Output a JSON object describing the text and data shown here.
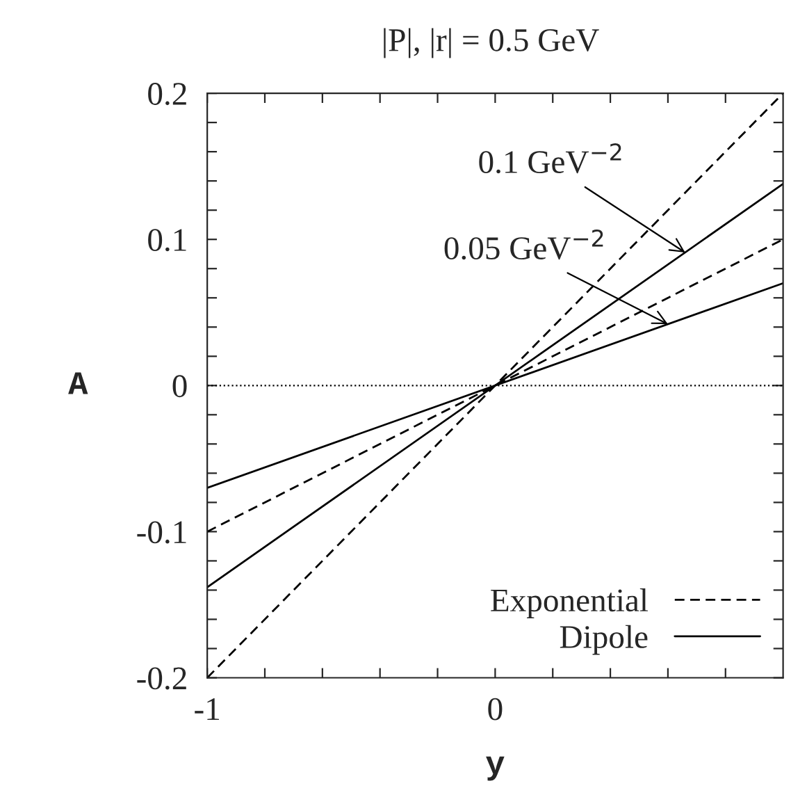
{
  "chart_data": {
    "type": "line",
    "title": "|P|, |r| = 0.5 GeV",
    "xlabel": "y",
    "ylabel": "A",
    "x": [
      -1,
      1
    ],
    "series": [
      {
        "name": "Exponential",
        "color": "#000000",
        "line_style": "dashed",
        "values": [
          -0.2,
          0.2
        ]
      },
      {
        "name": "Dipole",
        "color": "#000000",
        "line_style": "solid",
        "values": [
          -0.138,
          0.138
        ]
      },
      {
        "color": "#000000",
        "line_style": "dashed",
        "values": [
          -0.1,
          0.1
        ]
      },
      {
        "color": "#000000",
        "line_style": "solid",
        "values": [
          -0.07,
          0.07
        ]
      }
    ],
    "xlim": [
      -1,
      1
    ],
    "ylim": [
      -0.2,
      0.2
    ],
    "xticks": [
      -1,
      {
        "value": -0.8,
        "label": null
      },
      {
        "value": -0.6,
        "label": null
      },
      {
        "value": -0.4,
        "label": null
      },
      {
        "value": -0.2,
        "label": null
      },
      0,
      {
        "value": 0.2,
        "label": null
      },
      {
        "value": 0.4,
        "label": null
      },
      {
        "value": 0.6,
        "label": null
      },
      {
        "value": 0.8,
        "label": null
      }
    ],
    "yticks": [
      -0.2,
      {
        "value": -0.18,
        "label": null
      },
      {
        "value": -0.16,
        "label": null
      },
      {
        "value": -0.14,
        "label": null
      },
      {
        "value": -0.12,
        "label": null
      },
      -0.1,
      {
        "value": -0.08,
        "label": null
      },
      {
        "value": -0.06,
        "label": null
      },
      {
        "value": -0.04,
        "label": null
      },
      {
        "value": -0.02,
        "label": null
      },
      0,
      {
        "value": 0.02,
        "label": null
      },
      {
        "value": 0.04,
        "label": null
      },
      {
        "value": 0.06,
        "label": null
      },
      {
        "value": 0.08,
        "label": null
      },
      0.1,
      {
        "value": 0.12,
        "label": null
      },
      {
        "value": 0.14,
        "label": null
      },
      {
        "value": 0.16,
        "label": null
      },
      {
        "value": 0.18,
        "label": null
      },
      0.2
    ],
    "ref_lines": [
      {
        "axis": "y",
        "value": 0,
        "line_style": "dotted"
      }
    ],
    "annotations": [
      {
        "text": "0.1 GeV$^{−2}$",
        "x": 0.66,
        "y": 0.091
      },
      {
        "text": "0.05 GeV$^{−2}$",
        "x": 0.6,
        "y": 0.042
      }
    ],
    "legend": "bottom right",
    "grid": false
  }
}
